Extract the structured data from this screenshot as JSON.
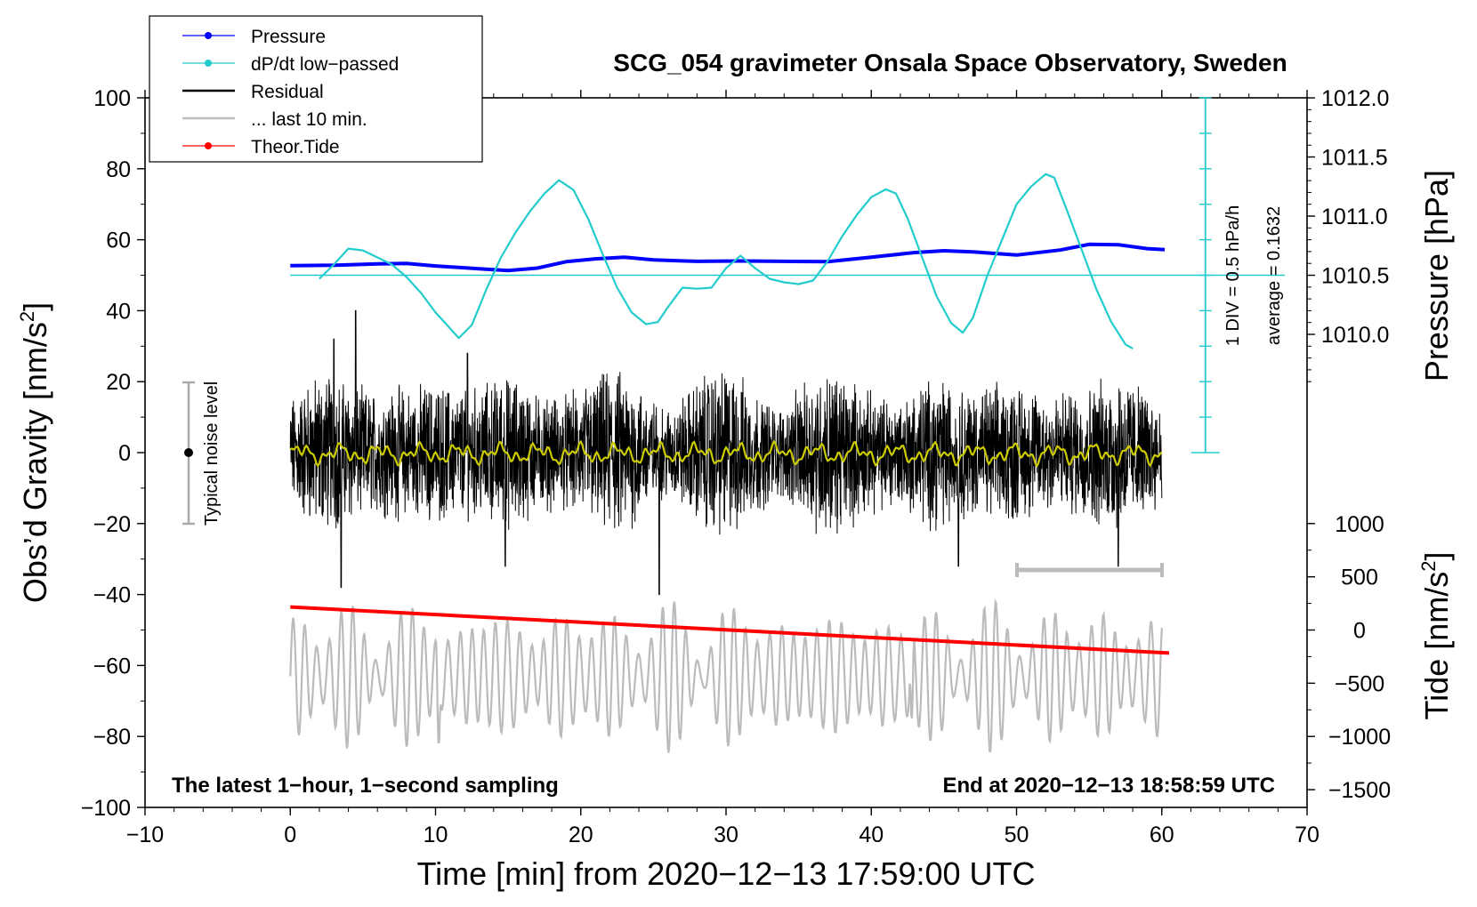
{
  "chart_data": {
    "type": "line",
    "title": "SCG_054 gravimeter Onsala Space Observatory, Sweden",
    "xlabel": "Time [min] from 2020−12−13 17:59:00 UTC",
    "ylabel": "Obs’d Gravity [nm/s²]",
    "ylabel_parts": [
      "Obs’d Gravity [nm/s",
      "2",
      "]"
    ],
    "y2label": "Pressure [hPa]",
    "y3label_parts": [
      "Tide [nm/s",
      "2",
      "]"
    ],
    "xlim": [
      -10,
      70
    ],
    "ylim": [
      -100,
      100
    ],
    "xticks": [
      {
        "v": -10,
        "label": "−10"
      },
      {
        "v": 0,
        "label": "0"
      },
      {
        "v": 10,
        "label": "10"
      },
      {
        "v": 20,
        "label": "20"
      },
      {
        "v": 30,
        "label": "30"
      },
      {
        "v": 40,
        "label": "40"
      },
      {
        "v": 50,
        "label": "50"
      },
      {
        "v": 60,
        "label": "60"
      },
      {
        "v": 70,
        "label": "70"
      }
    ],
    "yticks": [
      {
        "v": 100,
        "label": "100"
      },
      {
        "v": 80,
        "label": "80"
      },
      {
        "v": 60,
        "label": "60"
      },
      {
        "v": 40,
        "label": "40"
      },
      {
        "v": 20,
        "label": "20"
      },
      {
        "v": 0,
        "label": "0"
      },
      {
        "v": -20,
        "label": "−20"
      },
      {
        "v": -40,
        "label": "−40"
      },
      {
        "v": -60,
        "label": "−60"
      },
      {
        "v": -80,
        "label": "−80"
      },
      {
        "v": -100,
        "label": "−100"
      }
    ],
    "pressure_axis": {
      "ticks": [
        {
          "p": 1012.0,
          "label": "1012.0"
        },
        {
          "p": 1011.5,
          "label": "1011.5"
        },
        {
          "p": 1011.0,
          "label": "1011.0"
        },
        {
          "p": 1010.5,
          "label": "1010.5"
        },
        {
          "p": 1010.0,
          "label": "1010.0"
        }
      ],
      "mapping": {
        "p_at_y0": 1009.0,
        "y_per_hPa": 33.33
      }
    },
    "tide_axis": {
      "ticks": [
        {
          "t": 1000,
          "label": "1000"
        },
        {
          "t": 500,
          "label": "500"
        },
        {
          "t": 0,
          "label": "0"
        },
        {
          "t": -500,
          "label": "−500"
        },
        {
          "t": -1000,
          "label": "−1000"
        },
        {
          "t": -1500,
          "label": "−1500"
        }
      ],
      "mapping": {
        "y_at_t0": -50,
        "y_per_unit": 0.03
      }
    },
    "dpdt_scale": {
      "x": 63,
      "y_from": 0,
      "y_to": 100,
      "baseline_y": 50,
      "div_label": "1 DIV = 0.5 hPa/h",
      "average_label": "average = 0.1632"
    },
    "noise_bar": {
      "x": -7,
      "y_low": -20,
      "y_high": 20,
      "label": "Typical noise level"
    },
    "window_bar": {
      "x_start": 50,
      "x_end": 60,
      "y": -33
    },
    "legend": [
      {
        "label": "Pressure",
        "color": "#0000ff",
        "marker": true
      },
      {
        "label": "dP/dt low−passed",
        "color": "#22cccc",
        "marker": true
      },
      {
        "label": "Residual",
        "color": "#000000",
        "marker": false
      },
      {
        "label": "... last 10 min.",
        "color": "#bbbbbb",
        "marker": false
      },
      {
        "label": "Theor.Tide",
        "color": "#ff0000",
        "marker": true
      }
    ],
    "annotation_left": "The latest 1−hour, 1−second sampling",
    "annotation_right": "End at 2020−12−13 18:58:59 UTC",
    "series": [
      {
        "name": "Pressure",
        "color": "#0000ff",
        "width": 4,
        "x": [
          0,
          3,
          6,
          8,
          10,
          13,
          15,
          17,
          19,
          21,
          23,
          25,
          28,
          31,
          34,
          37,
          40,
          43,
          45,
          47,
          50,
          53,
          55,
          57,
          59,
          60.2
        ],
        "y": [
          52.7,
          52.8,
          53.2,
          53.3,
          52.6,
          51.8,
          51.3,
          52.0,
          53.8,
          54.6,
          55.1,
          54.3,
          53.9,
          54.0,
          53.9,
          53.8,
          55.1,
          56.4,
          56.9,
          56.6,
          55.7,
          57.1,
          58.7,
          58.6,
          57.5,
          57.2
        ]
      },
      {
        "name": "dP/dt low-passed",
        "color": "#22cccc",
        "width": 2.2,
        "x": [
          2,
          3,
          4,
          5,
          6,
          7,
          8,
          9,
          10,
          11,
          11.6,
          12.5,
          13.5,
          14.5,
          15.5,
          16.5,
          17.5,
          18.5,
          19.5,
          20.5,
          21.5,
          22.5,
          23.5,
          24.5,
          25.3,
          26,
          27,
          28,
          29,
          30,
          31,
          32,
          33,
          34,
          35,
          36,
          37,
          38,
          39,
          40,
          41,
          41.7,
          42.5,
          43.5,
          44.5,
          45.5,
          46.3,
          47,
          48,
          49,
          50,
          51,
          52,
          52.6,
          53.5,
          54.5,
          55.5,
          56.5,
          57.5,
          58
        ],
        "y": [
          49,
          53,
          57.5,
          57,
          55,
          53,
          49.5,
          45,
          39.5,
          35,
          32.3,
          36,
          46,
          55,
          62,
          68,
          73,
          76.8,
          74,
          66,
          56,
          46.5,
          39.5,
          36.2,
          36.8,
          41,
          46.5,
          46.2,
          46.5,
          52,
          55.5,
          52,
          49,
          48,
          47.5,
          48.5,
          54,
          61,
          67,
          72,
          74.2,
          73,
          66,
          55,
          44,
          36.5,
          33.8,
          38,
          50,
          60,
          70,
          75,
          78.5,
          77.5,
          68,
          57,
          46,
          37,
          30.5,
          29.3
        ]
      },
      {
        "name": "Theor.Tide",
        "color": "#ff0000",
        "width": 4,
        "x": [
          0,
          60.5
        ],
        "y": [
          -43.5,
          -56.5
        ]
      }
    ]
  }
}
